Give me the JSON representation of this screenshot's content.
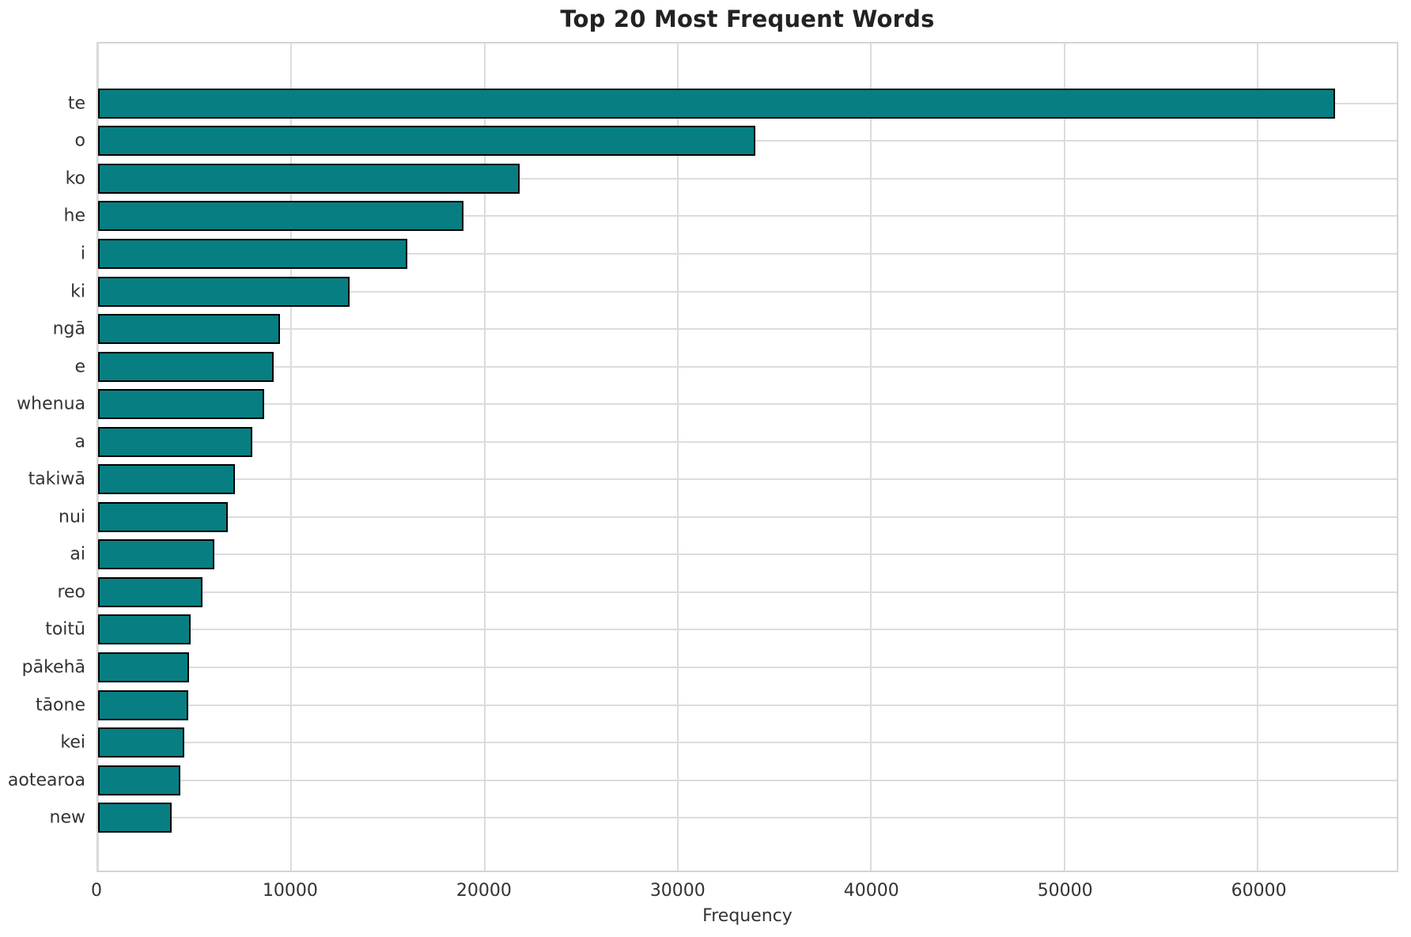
{
  "chart_data": {
    "type": "bar",
    "orientation": "horizontal",
    "title": "Top 20 Most Frequent Words",
    "xlabel": "Frequency",
    "ylabel": "",
    "categories": [
      "te",
      "o",
      "ko",
      "he",
      "i",
      "ki",
      "ngā",
      "e",
      "whenua",
      "a",
      "takiwā",
      "nui",
      "ai",
      "reo",
      "toitū",
      "pākehā",
      "tāone",
      "kei",
      "aotearoa",
      "new"
    ],
    "values": [
      64000,
      34000,
      21800,
      18900,
      16000,
      13000,
      9400,
      9100,
      8600,
      8000,
      7100,
      6700,
      6000,
      5400,
      4800,
      4720,
      4680,
      4450,
      4250,
      3800
    ],
    "xlim": [
      0,
      67200
    ],
    "xticks": [
      0,
      10000,
      20000,
      30000,
      40000,
      50000,
      60000
    ],
    "grid": true,
    "legend": null,
    "bar_color": "#077f82",
    "bar_edge_color": "#000000"
  }
}
